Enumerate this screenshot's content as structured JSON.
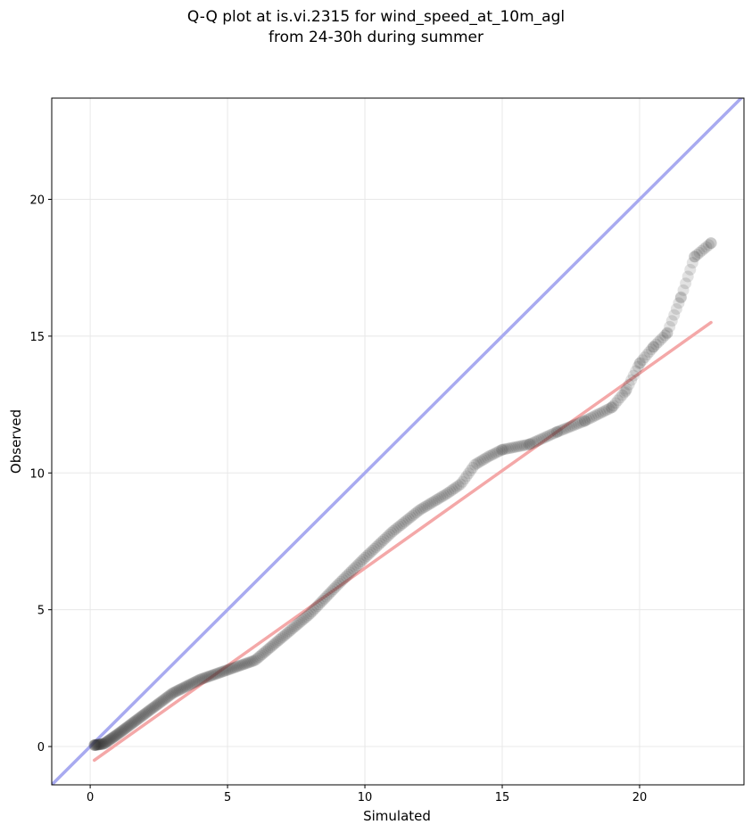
{
  "chart_data": {
    "type": "scatter",
    "title_lines": [
      "Q-Q plot at is.vi.2315 for wind_speed_at_10m_agl",
      "from 24-30h during summer"
    ],
    "xlabel": "Simulated",
    "ylabel": "Observed",
    "xlim": [
      -1.4,
      23.8
    ],
    "ylim": [
      -1.4,
      23.7
    ],
    "xticks": [
      0,
      5,
      10,
      15,
      20
    ],
    "yticks": [
      0,
      5,
      10,
      15,
      20
    ],
    "grid": true,
    "points_color": "#333333",
    "identity_line_color": "#a8aaf0",
    "fit_line_color": "#f4a8a8",
    "fit_line": {
      "x": [
        0.15,
        22.6
      ],
      "y": [
        -0.5,
        15.5
      ]
    },
    "quantile_anchors": {
      "x": [
        0.15,
        0.5,
        1.0,
        2.0,
        3.0,
        4.0,
        5.0,
        6.0,
        7.0,
        8.0,
        9.0,
        10.0,
        11.0,
        12.0,
        13.0,
        13.5,
        14.0,
        14.5,
        15.0,
        16.0,
        17.0,
        18.0,
        19.0,
        19.5,
        20.0,
        20.5,
        21.0,
        21.5,
        22.0,
        22.6
      ],
      "y": [
        0.05,
        0.1,
        0.45,
        1.2,
        1.95,
        2.45,
        2.8,
        3.15,
        4.0,
        4.85,
        5.9,
        6.9,
        7.85,
        8.65,
        9.25,
        9.6,
        10.3,
        10.6,
        10.85,
        11.05,
        11.5,
        11.9,
        12.4,
        13.0,
        14.0,
        14.6,
        15.1,
        16.4,
        17.9,
        18.4
      ]
    },
    "sample_count": 360
  }
}
